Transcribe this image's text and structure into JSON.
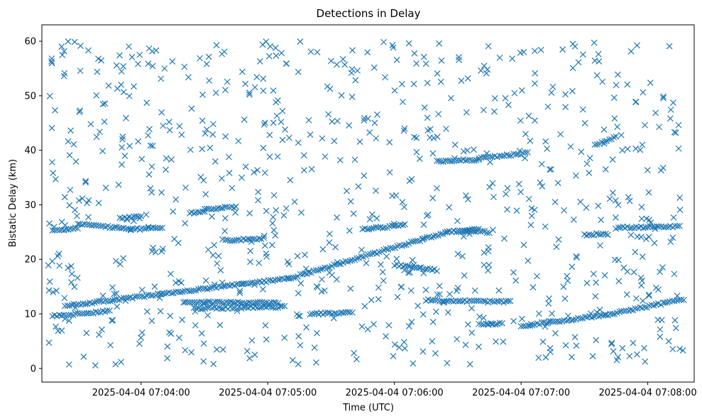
{
  "chart_data": {
    "type": "scatter",
    "title": "Detections in Delay",
    "xlabel": "Time (UTC)",
    "ylabel": "Bistatic Delay (km)",
    "x_axis_type": "time",
    "xlim": [
      "2025-04-04 07:03:13",
      "2025-04-04 07:08:22"
    ],
    "ylim": [
      -2.5,
      63
    ],
    "x_ticks": [
      {
        "value": "2025-04-04 07:04:00",
        "label": "2025-04-04 07:04:00"
      },
      {
        "value": "2025-04-04 07:05:00",
        "label": "2025-04-04 07:05:00"
      },
      {
        "value": "2025-04-04 07:06:00",
        "label": "2025-04-04 07:06:00"
      },
      {
        "value": "2025-04-04 07:07:00",
        "label": "2025-04-04 07:07:00"
      },
      {
        "value": "2025-04-04 07:08:00",
        "label": "2025-04-04 07:08:00"
      }
    ],
    "y_ticks": [
      0,
      10,
      20,
      30,
      40,
      50,
      60
    ],
    "grid": false,
    "marker": "x",
    "marker_color": "#1f77b4",
    "series": [
      {
        "tracks": [
          {
            "start": [
              "2025-04-04 07:03:25",
              11.5
            ],
            "end": [
              "2025-04-04 07:05:10",
              16.5
            ]
          },
          {
            "start": [
              "2025-04-04 07:05:10",
              16.5
            ],
            "end": [
              "2025-04-04 07:06:25",
              25.0
            ]
          },
          {
            "start": [
              "2025-04-04 07:06:25",
              25.0
            ],
            "end": [
              "2025-04-04 07:06:40",
              25.5
            ]
          },
          {
            "start": [
              "2025-04-04 07:07:00",
              7.8
            ],
            "end": [
              "2025-04-04 07:07:40",
              9.8
            ]
          },
          {
            "start": [
              "2025-04-04 07:07:40",
              9.8
            ],
            "end": [
              "2025-04-04 07:08:17",
              12.7
            ]
          },
          {
            "start": [
              "2025-04-04 07:03:18",
              9.6
            ],
            "end": [
              "2025-04-04 07:03:45",
              10.5
            ]
          },
          {
            "start": [
              "2025-04-04 07:03:18",
              25.3
            ],
            "end": [
              "2025-04-04 07:03:30",
              25.7
            ]
          },
          {
            "start": [
              "2025-04-04 07:03:30",
              26.5
            ],
            "end": [
              "2025-04-04 07:03:55",
              25.5
            ]
          },
          {
            "start": [
              "2025-04-04 07:03:55",
              25.5
            ],
            "end": [
              "2025-04-04 07:04:10",
              25.8
            ]
          },
          {
            "start": [
              "2025-04-04 07:03:50",
              27.5
            ],
            "end": [
              "2025-04-04 07:04:00",
              27.8
            ]
          },
          {
            "start": [
              "2025-04-04 07:04:23",
              28.5
            ],
            "end": [
              "2025-04-04 07:04:30",
              28.8
            ]
          },
          {
            "start": [
              "2025-04-04 07:04:30",
              29.2
            ],
            "end": [
              "2025-04-04 07:04:45",
              29.6
            ]
          },
          {
            "start": [
              "2025-04-04 07:04:40",
              23.5
            ],
            "end": [
              "2025-04-04 07:04:58",
              23.8
            ]
          },
          {
            "start": [
              "2025-04-04 07:04:20",
              12.2
            ],
            "end": [
              "2025-04-04 07:05:05",
              12.0
            ]
          },
          {
            "start": [
              "2025-04-04 07:04:25",
              11.0
            ],
            "end": [
              "2025-04-04 07:05:08",
              11.3
            ]
          },
          {
            "start": [
              "2025-04-04 07:05:20",
              10.0
            ],
            "end": [
              "2025-04-04 07:05:40",
              10.3
            ]
          },
          {
            "start": [
              "2025-04-04 07:05:45",
              25.5
            ],
            "end": [
              "2025-04-04 07:06:05",
              26.3
            ]
          },
          {
            "start": [
              "2025-04-04 07:06:00",
              19.0
            ],
            "end": [
              "2025-04-04 07:06:20",
              18.0
            ]
          },
          {
            "start": [
              "2025-04-04 07:06:20",
              38.0
            ],
            "end": [
              "2025-04-04 07:06:40",
              38.3
            ]
          },
          {
            "start": [
              "2025-04-04 07:06:40",
              38.5
            ],
            "end": [
              "2025-04-04 07:07:03",
              39.5
            ]
          },
          {
            "start": [
              "2025-04-04 07:06:15",
              12.5
            ],
            "end": [
              "2025-04-04 07:06:55",
              12.2
            ]
          },
          {
            "start": [
              "2025-04-04 07:06:30",
              25.3
            ],
            "end": [
              "2025-04-04 07:06:45",
              25.0
            ]
          },
          {
            "start": [
              "2025-04-04 07:06:40",
              8.0
            ],
            "end": [
              "2025-04-04 07:06:50",
              8.2
            ]
          },
          {
            "start": [
              "2025-04-04 07:07:30",
              24.5
            ],
            "end": [
              "2025-04-04 07:07:40",
              24.7
            ]
          },
          {
            "start": [
              "2025-04-04 07:07:35",
              41.0
            ],
            "end": [
              "2025-04-04 07:07:45",
              42.5
            ]
          },
          {
            "start": [
              "2025-04-04 07:07:45",
              25.8
            ],
            "end": [
              "2025-04-04 07:08:15",
              26.0
            ]
          }
        ],
        "scatter_density": 800,
        "scatter_y_range": [
          0.5,
          60
        ]
      }
    ]
  }
}
